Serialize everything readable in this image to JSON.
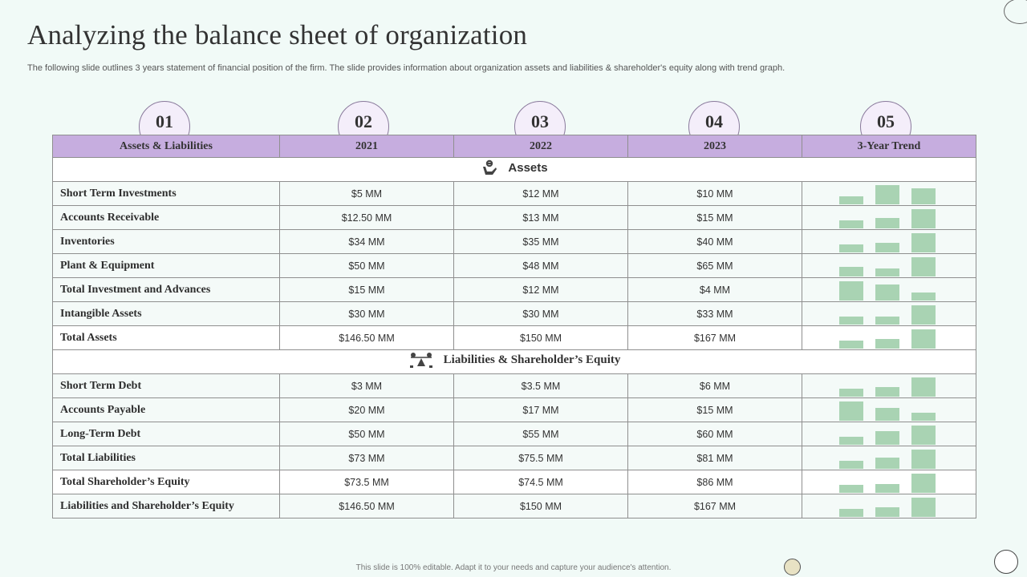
{
  "title": "Analyzing  the balance  sheet of organization",
  "subtitle": "The following slide outlines 3 years statement of financial position of the firm. The slide provides information about organization assets and liabilities & shareholder's equity along with trend graph.",
  "footer": "This slide is 100% editable.  Adapt it to your needs and capture your audience's attention.",
  "badges": [
    "01",
    "02",
    "03",
    "04",
    "05"
  ],
  "columns": [
    "Assets & Liabilities",
    "2021",
    "2022",
    "2023",
    "3-Year Trend"
  ],
  "sections": {
    "assets": {
      "label": "Assets",
      "icon": "hand-money-icon"
    },
    "liabilities": {
      "label": "Liabilities  & Shareholder’s  Equity",
      "icon": "scale-balance-icon"
    }
  },
  "colors": {
    "header_bg": "#c6addf",
    "trend_bar": "#a9d3b3",
    "background": "#f1faf7"
  },
  "chart_data": {
    "type": "table",
    "columns": [
      "Assets & Liabilities",
      "2021",
      "2022",
      "2023",
      "3-Year Trend"
    ],
    "assets_rows": [
      {
        "label": "Short Term Investments",
        "values": [
          "$5 MM",
          "$12 MM",
          "$10 MM"
        ],
        "trend": [
          5,
          12,
          10
        ]
      },
      {
        "label": "Accounts Receivable",
        "values": [
          "$12.50 MM",
          "$13 MM",
          "$15 MM"
        ],
        "trend": [
          12.5,
          13,
          15
        ]
      },
      {
        "label": "Inventories",
        "values": [
          "$34 MM",
          "$35 MM",
          "$40 MM"
        ],
        "trend": [
          34,
          35,
          40
        ]
      },
      {
        "label": "Plant & Equipment",
        "values": [
          "$50 MM",
          "$48 MM",
          "$65 MM"
        ],
        "trend": [
          50,
          48,
          65
        ]
      },
      {
        "label": "Total Investment and Advances",
        "values": [
          "$15 MM",
          "$12 MM",
          "$4 MM"
        ],
        "trend": [
          15,
          12,
          4
        ]
      },
      {
        "label": "Intangible Assets",
        "values": [
          "$30 MM",
          "$30 MM",
          "$33 MM"
        ],
        "trend": [
          30,
          30,
          33
        ]
      },
      {
        "label": "Total Assets",
        "values": [
          "$146.50 MM",
          "$150 MM",
          "$167 MM"
        ],
        "trend": [
          146.5,
          150,
          167
        ],
        "total": true
      }
    ],
    "liabilities_rows": [
      {
        "label": "Short Term Debt",
        "values": [
          "$3 MM",
          "$3.5 MM",
          "$6 MM"
        ],
        "trend": [
          3,
          3.5,
          6
        ]
      },
      {
        "label": "Accounts Payable",
        "values": [
          "$20 MM",
          "$17 MM",
          "$15 MM"
        ],
        "trend": [
          20,
          17,
          15
        ]
      },
      {
        "label": "Long-Term Debt",
        "values": [
          "$50 MM",
          "$55 MM",
          "$60 MM"
        ],
        "trend": [
          50,
          55,
          60
        ]
      },
      {
        "label": "Total Liabilities",
        "values": [
          "$73 MM",
          "$75.5 MM",
          "$81 MM"
        ],
        "trend": [
          73,
          75.5,
          81
        ]
      },
      {
        "label": "Total Shareholder’s Equity",
        "values": [
          "$73.5 MM",
          "$74.5 MM",
          "$86 MM"
        ],
        "trend": [
          73.5,
          74.5,
          86
        ],
        "total": true
      },
      {
        "label": "Liabilities and Shareholder’s Equity",
        "values": [
          "$146.50 MM",
          "$150 MM",
          "$167 MM"
        ],
        "trend": [
          146.5,
          150,
          167
        ]
      }
    ]
  }
}
